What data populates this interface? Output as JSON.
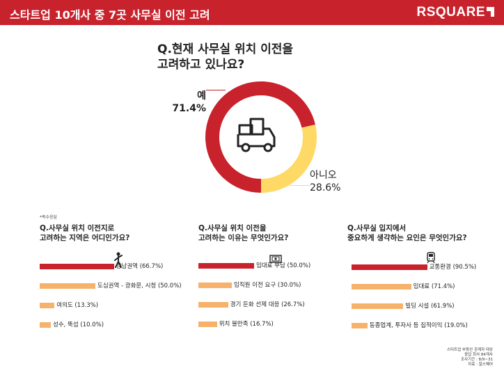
{
  "header": {
    "title": "스타트업 10개사 중 7곳 사무실 이전 고려",
    "brand": "RSQUARE"
  },
  "colors": {
    "red": "#c8222c",
    "yellow": "#ffd966",
    "orange": "#f6b26b"
  },
  "chart_data": [
    {
      "type": "pie",
      "title": "Q.현재 사무실 위치 이전을\n고려하고 있나요?",
      "categories": [
        "예",
        "아니오"
      ],
      "values": [
        71.4,
        28.6
      ],
      "value_labels": [
        "71.4%",
        "28.6%"
      ],
      "colors": [
        "#c8222c",
        "#ffd966"
      ],
      "icon": "truck-icon"
    },
    {
      "type": "bar",
      "title": "Q.사무실 위치 이전지로\n고려하는 지역은 어디인가요?",
      "categories": [
        "강남권역",
        "도심권역 - 광화문, 시청",
        "여의도",
        "성수, 뚝섬"
      ],
      "values": [
        66.7,
        50.0,
        13.3,
        10.0
      ],
      "bar_labels": [
        "강남권역 (66.7%)",
        "도심권역 - 광화문, 시청 (50.0%)",
        "여의도 (13.3%)",
        "성수, 뚝섬 (10.0%)"
      ],
      "icon": "gangnam-style-dancer-icon"
    },
    {
      "type": "bar",
      "title": "Q.사무실 위치 이전을\n고려하는 이유는 무엇인가요?",
      "categories": [
        "임대료 부담",
        "임직원 이전 요구",
        "경기 둔화 선제 대응",
        "위치 불만족"
      ],
      "values": [
        50.0,
        30.0,
        26.7,
        16.7
      ],
      "bar_labels": [
        "임대료 부담 (50.0%)",
        "임직원 이전 요구 (30.0%)",
        "경기 둔화 선제 대응 (26.7%)",
        "위치 불만족 (16.7%)"
      ],
      "icon": "money-icon"
    },
    {
      "type": "bar",
      "title": "Q.사무실 입지에서\n중요하게 생각하는 요인은 무엇인가요?",
      "categories": [
        "교통환경",
        "임대료",
        "빌딩 시설",
        "동종업계, 투자사 등 집적이익"
      ],
      "values": [
        90.5,
        71.4,
        61.9,
        19.0
      ],
      "bar_labels": [
        "교통환경 (90.5%)",
        "임대료 (71.4%)",
        "빌딩 시설 (61.9%)",
        "동종업계, 투자사 등 집적이익 (19.0%)"
      ],
      "icon": "train-icon"
    }
  ],
  "note": "*복수응답",
  "source": [
    "스타트업 부동산 관계자 대상",
    "응답 회사 84개사",
    "조사기간 : 8/9~31",
    "자료 : 알스퀘어"
  ]
}
